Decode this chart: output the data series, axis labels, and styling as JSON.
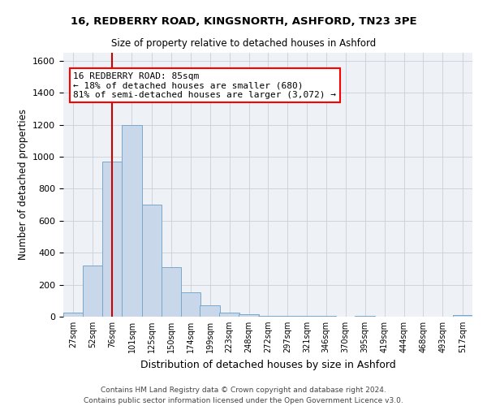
{
  "title_line1": "16, REDBERRY ROAD, KINGSNORTH, ASHFORD, TN23 3PE",
  "title_line2": "Size of property relative to detached houses in Ashford",
  "xlabel": "Distribution of detached houses by size in Ashford",
  "ylabel": "Number of detached properties",
  "annotation_line1": "16 REDBERRY ROAD: 85sqm",
  "annotation_line2": "← 18% of detached houses are smaller (680)",
  "annotation_line3": "81% of semi-detached houses are larger (3,072) →",
  "bar_color": "#c8d8ea",
  "bar_edge_color": "#7aa8c8",
  "vline_color": "#cc0000",
  "vline_x": 76,
  "categories": [
    "27sqm",
    "52sqm",
    "76sqm",
    "101sqm",
    "125sqm",
    "150sqm",
    "174sqm",
    "199sqm",
    "223sqm",
    "248sqm",
    "272sqm",
    "297sqm",
    "321sqm",
    "346sqm",
    "370sqm",
    "395sqm",
    "419sqm",
    "444sqm",
    "468sqm",
    "493sqm",
    "517sqm"
  ],
  "bin_edges": [
    14.5,
    39.5,
    63.5,
    88.5,
    113.5,
    138.5,
    162.5,
    187.5,
    211.5,
    236.5,
    260.5,
    284.5,
    309.5,
    333.5,
    358.5,
    382.5,
    407.5,
    431.5,
    456.5,
    480.5,
    505.5,
    530.5
  ],
  "values": [
    25,
    320,
    970,
    1200,
    700,
    310,
    150,
    70,
    25,
    15,
    5,
    5,
    3,
    5,
    2,
    5,
    2,
    0,
    0,
    0,
    8
  ],
  "ylim": [
    0,
    1650
  ],
  "yticks": [
    0,
    200,
    400,
    600,
    800,
    1000,
    1200,
    1400,
    1600
  ],
  "footnote_line1": "Contains HM Land Registry data © Crown copyright and database right 2024.",
  "footnote_line2": "Contains public sector information licensed under the Open Government Licence v3.0.",
  "grid_color": "#c8d0d8",
  "background_color": "#eef2f6"
}
